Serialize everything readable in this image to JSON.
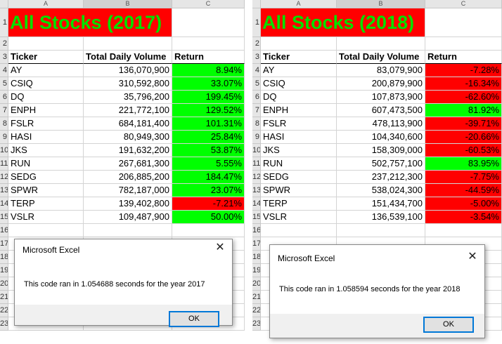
{
  "left": {
    "columns": [
      "A",
      "B",
      "C"
    ],
    "selected_column": "B",
    "row_numbers": [
      "1",
      "2",
      "3",
      "4",
      "5",
      "6",
      "7",
      "8",
      "9",
      "10",
      "11",
      "12",
      "13",
      "14",
      "15",
      "16",
      "17",
      "18",
      "19",
      "20",
      "21",
      "22",
      "23"
    ],
    "title": "All Stocks (2017)",
    "headers": {
      "ticker": "Ticker",
      "volume": "Total Daily Volume",
      "return": "Return"
    },
    "rows": [
      {
        "ticker": "AY",
        "volume": "136,070,900",
        "return": "8.94%",
        "positive": true
      },
      {
        "ticker": "CSIQ",
        "volume": "310,592,800",
        "return": "33.07%",
        "positive": true
      },
      {
        "ticker": "DQ",
        "volume": "35,796,200",
        "return": "199.45%",
        "positive": true
      },
      {
        "ticker": "ENPH",
        "volume": "221,772,100",
        "return": "129.52%",
        "positive": true
      },
      {
        "ticker": "FSLR",
        "volume": "684,181,400",
        "return": "101.31%",
        "positive": true
      },
      {
        "ticker": "HASI",
        "volume": "80,949,300",
        "return": "25.84%",
        "positive": true
      },
      {
        "ticker": "JKS",
        "volume": "191,632,200",
        "return": "53.87%",
        "positive": true
      },
      {
        "ticker": "RUN",
        "volume": "267,681,300",
        "return": "5.55%",
        "positive": true
      },
      {
        "ticker": "SEDG",
        "volume": "206,885,200",
        "return": "184.47%",
        "positive": true
      },
      {
        "ticker": "SPWR",
        "volume": "782,187,000",
        "return": "23.07%",
        "positive": true
      },
      {
        "ticker": "TERP",
        "volume": "139,402,800",
        "return": "-7.21%",
        "positive": false
      },
      {
        "ticker": "VSLR",
        "volume": "109,487,900",
        "return": "50.00%",
        "positive": true
      }
    ],
    "dialog": {
      "title": "Microsoft Excel",
      "message": "This code ran in 1.054688 seconds for the year 2017",
      "ok": "OK",
      "close": "✕"
    }
  },
  "right": {
    "columns": [
      "A",
      "B",
      "C"
    ],
    "selected_column": "B",
    "row_numbers": [
      "1",
      "2",
      "3",
      "4",
      "5",
      "6",
      "7",
      "8",
      "9",
      "10",
      "11",
      "12",
      "13",
      "14",
      "15",
      "16",
      "17",
      "18",
      "19",
      "20",
      "21",
      "22",
      "23"
    ],
    "title": "All Stocks (2018)",
    "headers": {
      "ticker": "Ticker",
      "volume": "Total Daily Volume",
      "return": "Return"
    },
    "rows": [
      {
        "ticker": "AY",
        "volume": "83,079,900",
        "return": "-7.28%",
        "positive": false
      },
      {
        "ticker": "CSIQ",
        "volume": "200,879,900",
        "return": "-16.34%",
        "positive": false
      },
      {
        "ticker": "DQ",
        "volume": "107,873,900",
        "return": "-62.60%",
        "positive": false
      },
      {
        "ticker": "ENPH",
        "volume": "607,473,500",
        "return": "81.92%",
        "positive": true
      },
      {
        "ticker": "FSLR",
        "volume": "478,113,900",
        "return": "-39.71%",
        "positive": false
      },
      {
        "ticker": "HASI",
        "volume": "104,340,600",
        "return": "-20.66%",
        "positive": false
      },
      {
        "ticker": "JKS",
        "volume": "158,309,000",
        "return": "-60.53%",
        "positive": false
      },
      {
        "ticker": "RUN",
        "volume": "502,757,100",
        "return": "83.95%",
        "positive": true
      },
      {
        "ticker": "SEDG",
        "volume": "237,212,300",
        "return": "-7.75%",
        "positive": false
      },
      {
        "ticker": "SPWR",
        "volume": "538,024,300",
        "return": "-44.59%",
        "positive": false
      },
      {
        "ticker": "TERP",
        "volume": "151,434,700",
        "return": "-5.00%",
        "positive": false
      },
      {
        "ticker": "VSLR",
        "volume": "136,539,100",
        "return": "-3.54%",
        "positive": false
      }
    ],
    "dialog": {
      "title": "Microsoft Excel",
      "message": "This code ran in 1.058594 seconds for the year 2018",
      "ok": "OK",
      "close": "✕"
    }
  },
  "colors": {
    "positive": "#00ff00",
    "negative": "#ff0000",
    "title_bg": "#ff0000",
    "title_text": "#00e000"
  }
}
